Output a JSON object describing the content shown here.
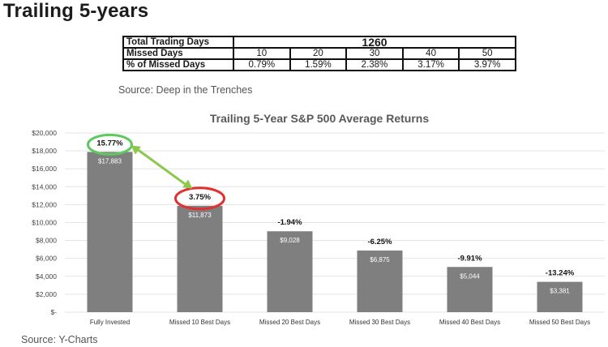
{
  "page": {
    "heading": "Trailing 5-years",
    "source_top": "Source: Deep in the Trenches",
    "source_bottom": "Source: Y-Charts"
  },
  "days_table": {
    "total_label": "Total Trading Days",
    "total_value": "1260",
    "missed_label": "Missed Days",
    "missed_values": [
      "10",
      "20",
      "30",
      "40",
      "50"
    ],
    "pct_label": "% of Missed Days",
    "pct_values": [
      "0.79%",
      "1.59%",
      "2.38%",
      "3.17%",
      "3.97%"
    ]
  },
  "colors": {
    "bar": "#7f7f7f",
    "highlight_green": "#5fc95f",
    "highlight_red": "#e03030",
    "arrow": "#8cc84b"
  },
  "chart_data": {
    "type": "bar",
    "title": "Trailing 5-Year S&P 500 Average Returns",
    "categories": [
      "Fully Invested",
      "Missed 10 Best Days",
      "Missed 20 Best Days",
      "Missed 30 Best Days",
      "Missed 40 Best Days",
      "Missed 50 Best Days"
    ],
    "values": [
      17883,
      11873,
      9028,
      6875,
      5044,
      3381
    ],
    "value_labels": [
      "$17,883",
      "$11,873",
      "$9,028",
      "$6,875",
      "$5,044",
      "$3,381"
    ],
    "return_labels": [
      "15.77%",
      "3.75%",
      "-1.94%",
      "-6.25%",
      "-9.91%",
      "-13.24%"
    ],
    "ylim": [
      0,
      20000
    ],
    "yticks": [
      0,
      2000,
      4000,
      6000,
      8000,
      10000,
      12000,
      14000,
      16000,
      18000,
      20000
    ],
    "ytick_labels": [
      "$-",
      "$2,000",
      "$4,000",
      "$6,000",
      "$8,000",
      "$10,000",
      "$12,000",
      "$14,000",
      "$16,000",
      "$18,000",
      "$20,000"
    ],
    "grid": true,
    "legend": "none",
    "xlabel": "",
    "ylabel": ""
  }
}
